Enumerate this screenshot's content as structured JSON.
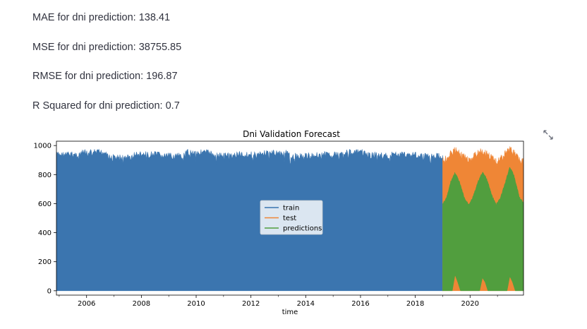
{
  "metrics": [
    "MAE for dni prediction: 138.41",
    "MSE for dni prediction: 38755.85",
    "RMSE for dni prediction: 196.87",
    "R Squared for dni prediction: 0.7"
  ],
  "expand_icon": "expand-arrows-icon",
  "chart_data": {
    "type": "area",
    "title": "Dni Validation Forecast",
    "xlabel": "time",
    "ylabel": "",
    "xlim": [
      2004.9,
      2021.95
    ],
    "ylim": [
      -30,
      1030
    ],
    "xticks": [
      2006,
      2008,
      2010,
      2012,
      2014,
      2016,
      2018,
      2020
    ],
    "yticks": [
      0,
      200,
      400,
      600,
      800,
      1000
    ],
    "grid": false,
    "legend": "center",
    "colors": {
      "train": "#3b75af",
      "test": "#ef8636",
      "predictions": "#519e3e"
    },
    "series": [
      {
        "name": "train",
        "x_range": [
          2004.9,
          2019.0
        ],
        "min": 0,
        "max_envelope_approx": [
          960,
          975,
          940,
          960,
          950,
          975,
          955,
          960,
          970,
          950,
          960,
          975,
          955,
          960,
          950
        ]
      },
      {
        "name": "test",
        "x_range": [
          2019.0,
          2021.95
        ],
        "min": 0,
        "max_envelope_points": [
          [
            2019.0,
            920
          ],
          [
            2019.2,
            950
          ],
          [
            2019.45,
            995
          ],
          [
            2019.7,
            960
          ],
          [
            2019.95,
            920
          ],
          [
            2020.2,
            960
          ],
          [
            2020.45,
            990
          ],
          [
            2020.7,
            960
          ],
          [
            2020.95,
            910
          ],
          [
            2021.2,
            950
          ],
          [
            2021.45,
            1000
          ],
          [
            2021.7,
            960
          ],
          [
            2021.95,
            910
          ]
        ]
      },
      {
        "name": "predictions",
        "x_range": [
          2019.0,
          2021.95
        ],
        "upper_points": [
          [
            2019.0,
            600
          ],
          [
            2019.15,
            650
          ],
          [
            2019.3,
            760
          ],
          [
            2019.45,
            820
          ],
          [
            2019.6,
            760
          ],
          [
            2019.8,
            640
          ],
          [
            2019.95,
            600
          ],
          [
            2020.1,
            650
          ],
          [
            2020.3,
            760
          ],
          [
            2020.45,
            820
          ],
          [
            2020.6,
            780
          ],
          [
            2020.8,
            660
          ],
          [
            2020.95,
            600
          ],
          [
            2021.1,
            640
          ],
          [
            2021.3,
            760
          ],
          [
            2021.45,
            860
          ],
          [
            2021.6,
            800
          ],
          [
            2021.8,
            650
          ],
          [
            2021.95,
            610
          ]
        ],
        "lower_points": [
          [
            2019.0,
            0
          ],
          [
            2019.35,
            0
          ],
          [
            2019.45,
            110
          ],
          [
            2019.55,
            60
          ],
          [
            2019.65,
            0
          ],
          [
            2020.35,
            0
          ],
          [
            2020.45,
            90
          ],
          [
            2020.55,
            60
          ],
          [
            2020.65,
            0
          ],
          [
            2021.35,
            0
          ],
          [
            2021.45,
            100
          ],
          [
            2021.55,
            60
          ],
          [
            2021.65,
            0
          ],
          [
            2021.95,
            0
          ]
        ]
      }
    ]
  }
}
